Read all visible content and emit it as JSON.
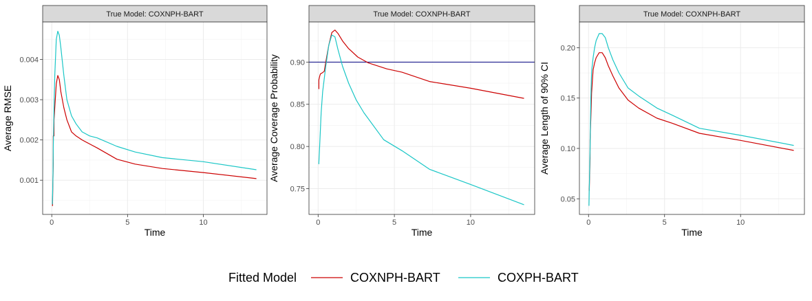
{
  "chart_data": [
    {
      "type": "line",
      "strip": "True Model: COXNPH-BART",
      "xlabel": "Time",
      "ylabel": "Average RMSE",
      "xlim": [
        -0.6,
        14.2
      ],
      "ylim": [
        0.00015,
        0.00493
      ],
      "xticks": [
        0,
        5,
        10
      ],
      "xtick_labels": [
        "0",
        "5",
        "10"
      ],
      "yticks": [
        0.001,
        0.002,
        0.003,
        0.004
      ],
      "ytick_labels": [
        "0.001",
        "0.002",
        "0.003",
        "0.004"
      ],
      "hline": null,
      "series": [
        {
          "name": "COXNPH-BART",
          "color": "#cc0000",
          "x": [
            0.05,
            0.08,
            0.1,
            0.1,
            0.15,
            0.15,
            0.2,
            0.3,
            0.4,
            0.5,
            0.6,
            0.8,
            1.0,
            1.3,
            1.6,
            2.0,
            2.5,
            3.0,
            4.3,
            5.5,
            7.3,
            10.0,
            13.5
          ],
          "y": [
            0.00036,
            0.0011,
            0.0014,
            0.0021,
            0.0021,
            0.0025,
            0.0028,
            0.0034,
            0.0036,
            0.0035,
            0.0032,
            0.0028,
            0.0025,
            0.0022,
            0.0021,
            0.002,
            0.0019,
            0.0018,
            0.00152,
            0.0014,
            0.00129,
            0.00119,
            0.00104
          ]
        },
        {
          "name": "COXPH-BART",
          "color": "#19c6c6",
          "x": [
            0.04,
            0.08,
            0.1,
            0.15,
            0.2,
            0.3,
            0.4,
            0.5,
            0.6,
            0.8,
            1.0,
            1.3,
            1.6,
            2.0,
            2.5,
            3.0,
            4.3,
            5.5,
            7.3,
            10.0,
            13.5
          ],
          "y": [
            0.0004,
            0.0011,
            0.0018,
            0.0028,
            0.0036,
            0.0045,
            0.0047,
            0.0046,
            0.0043,
            0.0036,
            0.003,
            0.0026,
            0.0024,
            0.0022,
            0.0021,
            0.00205,
            0.00184,
            0.0017,
            0.00156,
            0.00146,
            0.00126
          ]
        }
      ]
    },
    {
      "type": "line",
      "strip": "True Model: COXNPH-BART",
      "xlabel": "Time",
      "ylabel": "Average Coverage Probability",
      "xlim": [
        -0.6,
        14.2
      ],
      "ylim": [
        0.7195,
        0.9475
      ],
      "xticks": [
        0,
        5,
        10
      ],
      "xtick_labels": [
        "0",
        "5",
        "10"
      ],
      "yticks": [
        0.75,
        0.8,
        0.85,
        0.9
      ],
      "ytick_labels": [
        "0.75",
        "0.80",
        "0.85",
        "0.90"
      ],
      "hline": {
        "y": 0.9,
        "color": "#000080"
      },
      "series": [
        {
          "name": "COXNPH-BART",
          "color": "#cc0000",
          "x": [
            0.05,
            0.05,
            0.1,
            0.15,
            0.25,
            0.4,
            0.5,
            0.7,
            0.9,
            1.1,
            1.3,
            1.6,
            2.0,
            2.6,
            3.3,
            4.5,
            5.5,
            7.3,
            10.0,
            13.5
          ],
          "y": [
            0.868,
            0.879,
            0.883,
            0.886,
            0.887,
            0.889,
            0.9,
            0.92,
            0.935,
            0.938,
            0.934,
            0.925,
            0.916,
            0.906,
            0.899,
            0.892,
            0.888,
            0.877,
            0.869,
            0.857
          ]
        },
        {
          "name": "COXPH-BART",
          "color": "#19c6c6",
          "x": [
            0.05,
            0.05,
            0.1,
            0.15,
            0.2,
            0.3,
            0.5,
            0.7,
            0.9,
            1.1,
            1.3,
            1.6,
            2.0,
            2.5,
            3.0,
            4.3,
            5.5,
            7.3,
            10.0,
            13.5
          ],
          "y": [
            0.779,
            0.781,
            0.8,
            0.82,
            0.84,
            0.865,
            0.895,
            0.92,
            0.932,
            0.93,
            0.915,
            0.895,
            0.875,
            0.855,
            0.84,
            0.808,
            0.795,
            0.773,
            0.755,
            0.731
          ]
        }
      ]
    },
    {
      "type": "line",
      "strip": "True Model: COXNPH-BART",
      "xlabel": "Time",
      "ylabel": "Average Length of 90% CI",
      "xlim": [
        -0.6,
        14.2
      ],
      "ylim": [
        0.0345,
        0.2255
      ],
      "xticks": [
        0,
        5,
        10
      ],
      "xtick_labels": [
        "0",
        "5",
        "10"
      ],
      "yticks": [
        0.05,
        0.1,
        0.15,
        0.2
      ],
      "ytick_labels": [
        "0.05",
        "0.10",
        "0.15",
        "0.20"
      ],
      "hline": null,
      "series": [
        {
          "name": "COXNPH-BART",
          "color": "#cc0000",
          "x": [
            0.05,
            0.05,
            0.1,
            0.1,
            0.15,
            0.2,
            0.3,
            0.4,
            0.5,
            0.7,
            0.9,
            1.1,
            1.3,
            1.6,
            2.0,
            2.6,
            3.3,
            4.5,
            5.5,
            7.3,
            10.0,
            13.5
          ],
          "y": [
            0.058,
            0.06,
            0.09,
            0.108,
            0.13,
            0.155,
            0.178,
            0.185,
            0.19,
            0.195,
            0.195,
            0.19,
            0.182,
            0.172,
            0.16,
            0.148,
            0.14,
            0.13,
            0.125,
            0.115,
            0.108,
            0.098
          ]
        },
        {
          "name": "COXPH-BART",
          "color": "#19c6c6",
          "x": [
            0.03,
            0.05,
            0.1,
            0.15,
            0.2,
            0.3,
            0.4,
            0.5,
            0.7,
            0.9,
            1.1,
            1.3,
            1.6,
            2.0,
            2.6,
            3.3,
            4.5,
            5.5,
            7.3,
            10.0,
            13.5
          ],
          "y": [
            0.043,
            0.062,
            0.1,
            0.15,
            0.176,
            0.19,
            0.2,
            0.207,
            0.214,
            0.214,
            0.21,
            0.2,
            0.188,
            0.175,
            0.16,
            0.152,
            0.14,
            0.133,
            0.12,
            0.113,
            0.103
          ]
        }
      ]
    }
  ],
  "legend": {
    "title": "Fitted Model",
    "items": [
      {
        "label": "COXNPH-BART",
        "color": "#cc0000"
      },
      {
        "label": "COXPH-BART",
        "color": "#19c6c6"
      }
    ]
  }
}
